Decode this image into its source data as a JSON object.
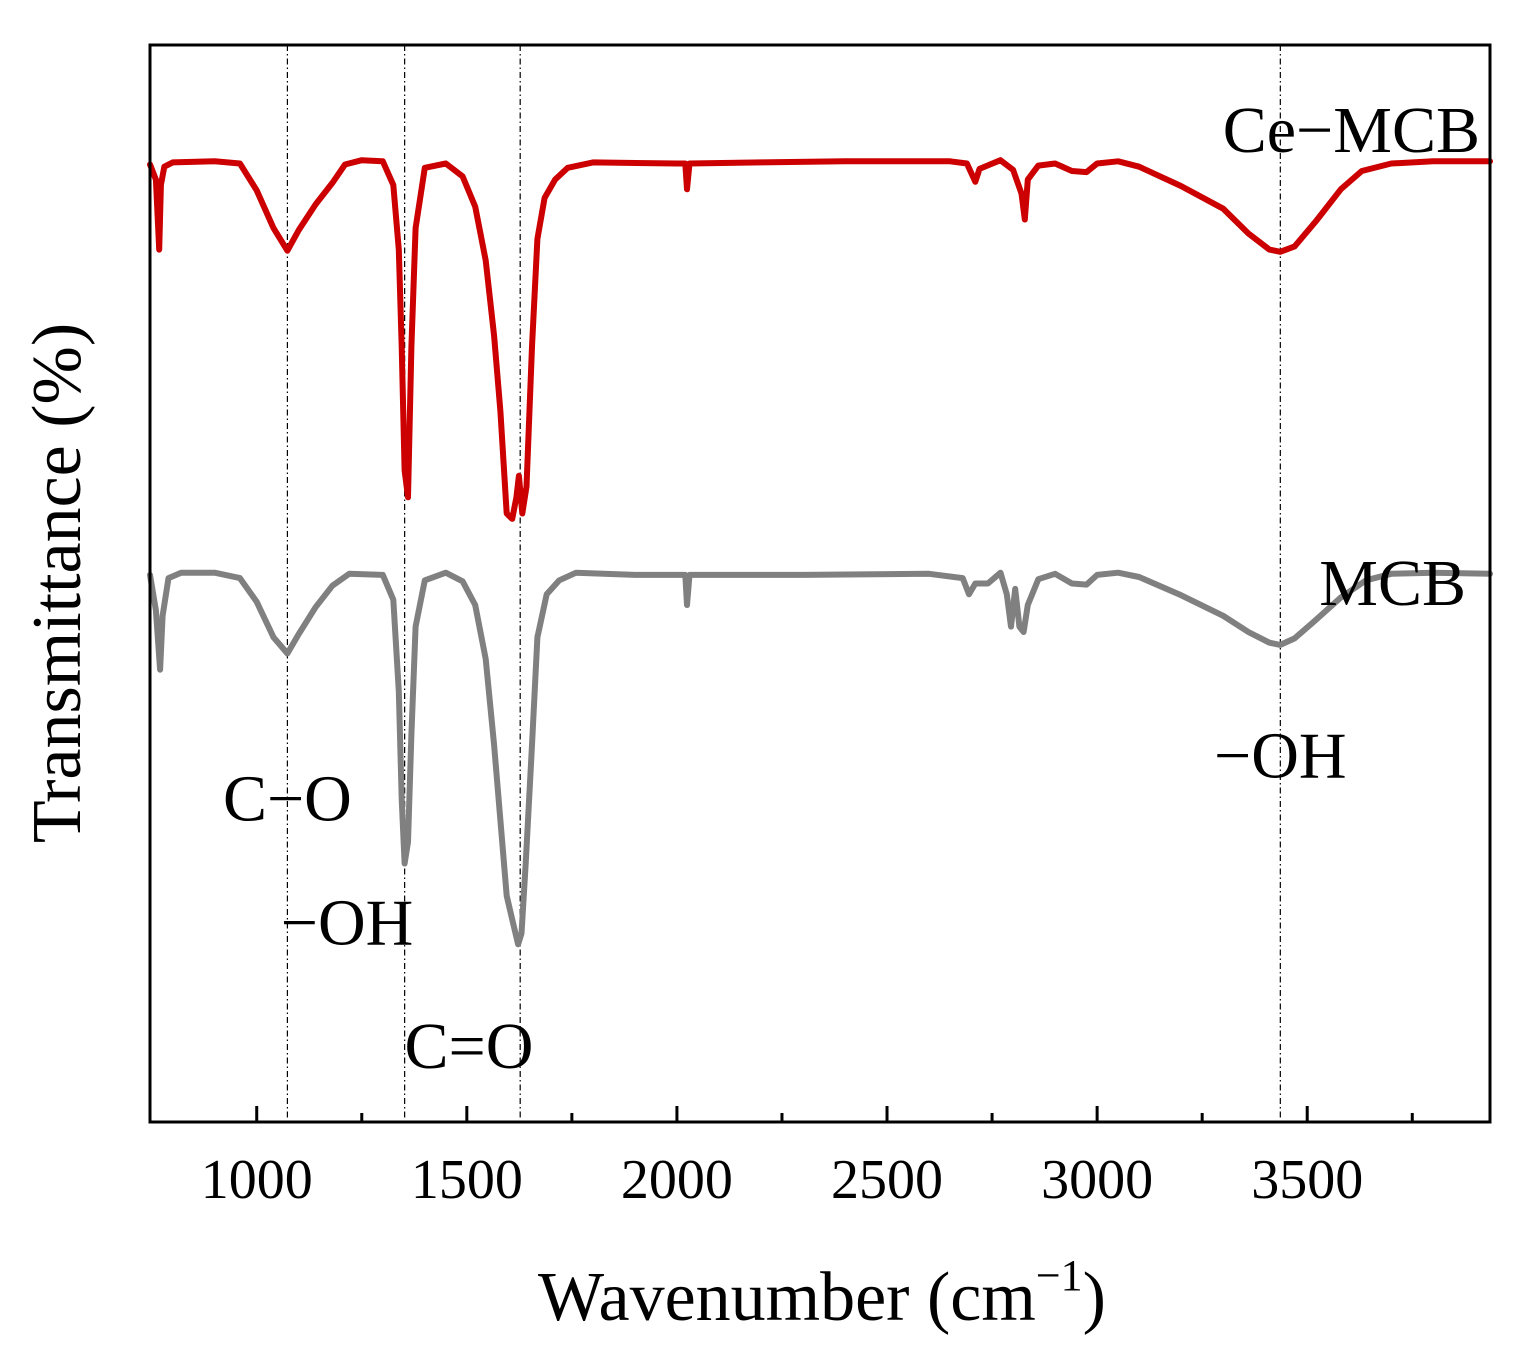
{
  "chart_data": {
    "type": "line",
    "title": "",
    "xlabel": "Wavenumber (cm",
    "xlabel_sup": "−1",
    "xlabel_close": ")",
    "ylabel": "Transmittance (%)",
    "xlim": [
      746,
      3935
    ],
    "ylim": [
      0,
      100
    ],
    "x_ticks": [
      1000,
      1500,
      2000,
      2500,
      3000,
      3500
    ],
    "x_tick_labels": [
      "1000",
      "1500",
      "2000",
      "2500",
      "3000",
      "3500"
    ],
    "x_minor_ticks": [
      1250,
      1750,
      2250,
      2750,
      3250,
      3750
    ],
    "grid": false,
    "colors": {
      "ce_mcb": "#cc0000",
      "mcb": "#808080",
      "axis": "#000000"
    },
    "reference_lines": [
      1073,
      1352,
      1627,
      3436
    ],
    "series": [
      {
        "name": "Ce−MCB",
        "color": "#cc0000",
        "label": "Ce−MCB",
        "points": [
          [
            746,
            88.9
          ],
          [
            760,
            87.5
          ],
          [
            768,
            81.0
          ],
          [
            772,
            87.0
          ],
          [
            780,
            88.7
          ],
          [
            800,
            89.1
          ],
          [
            900,
            89.2
          ],
          [
            960,
            89.0
          ],
          [
            1000,
            86.5
          ],
          [
            1040,
            83.0
          ],
          [
            1073,
            80.9
          ],
          [
            1100,
            82.8
          ],
          [
            1140,
            85.2
          ],
          [
            1180,
            87.2
          ],
          [
            1210,
            88.9
          ],
          [
            1250,
            89.3
          ],
          [
            1300,
            89.2
          ],
          [
            1325,
            87.0
          ],
          [
            1338,
            81.0
          ],
          [
            1345,
            72.0
          ],
          [
            1352,
            60.5
          ],
          [
            1360,
            58.0
          ],
          [
            1368,
            72.0
          ],
          [
            1378,
            83.0
          ],
          [
            1400,
            88.6
          ],
          [
            1450,
            89.0
          ],
          [
            1490,
            87.8
          ],
          [
            1520,
            85.0
          ],
          [
            1545,
            80.0
          ],
          [
            1565,
            73.0
          ],
          [
            1580,
            66.0
          ],
          [
            1595,
            56.5
          ],
          [
            1608,
            56.0
          ],
          [
            1618,
            58.0
          ],
          [
            1624,
            60.0
          ],
          [
            1632,
            56.5
          ],
          [
            1642,
            59.0
          ],
          [
            1655,
            72.0
          ],
          [
            1668,
            82.0
          ],
          [
            1685,
            85.8
          ],
          [
            1710,
            87.5
          ],
          [
            1740,
            88.6
          ],
          [
            1800,
            89.1
          ],
          [
            2000,
            89.0
          ],
          [
            2020,
            89.0
          ],
          [
            2024,
            86.6
          ],
          [
            2030,
            89.0
          ],
          [
            2200,
            89.1
          ],
          [
            2400,
            89.2
          ],
          [
            2650,
            89.2
          ],
          [
            2690,
            89.0
          ],
          [
            2710,
            87.3
          ],
          [
            2720,
            88.5
          ],
          [
            2745,
            88.9
          ],
          [
            2770,
            89.3
          ],
          [
            2800,
            88.4
          ],
          [
            2820,
            86.2
          ],
          [
            2828,
            83.8
          ],
          [
            2835,
            87.5
          ],
          [
            2860,
            88.8
          ],
          [
            2900,
            89.0
          ],
          [
            2940,
            88.3
          ],
          [
            2975,
            88.2
          ],
          [
            3000,
            89.0
          ],
          [
            3050,
            89.2
          ],
          [
            3100,
            88.7
          ],
          [
            3200,
            86.9
          ],
          [
            3300,
            84.8
          ],
          [
            3360,
            82.5
          ],
          [
            3410,
            81.0
          ],
          [
            3436,
            80.8
          ],
          [
            3470,
            81.3
          ],
          [
            3520,
            83.6
          ],
          [
            3580,
            86.6
          ],
          [
            3630,
            88.3
          ],
          [
            3700,
            89.0
          ],
          [
            3800,
            89.2
          ],
          [
            3935,
            89.2
          ]
        ]
      },
      {
        "name": "MCB",
        "color": "#808080",
        "label": "MCB",
        "points": [
          [
            746,
            50.8
          ],
          [
            760,
            47.5
          ],
          [
            770,
            42.0
          ],
          [
            776,
            47.0
          ],
          [
            790,
            50.5
          ],
          [
            820,
            51.0
          ],
          [
            900,
            51.0
          ],
          [
            960,
            50.5
          ],
          [
            1000,
            48.3
          ],
          [
            1040,
            45.0
          ],
          [
            1073,
            43.5
          ],
          [
            1100,
            45.3
          ],
          [
            1140,
            47.8
          ],
          [
            1180,
            49.8
          ],
          [
            1220,
            50.9
          ],
          [
            1300,
            50.8
          ],
          [
            1325,
            48.5
          ],
          [
            1338,
            40.0
          ],
          [
            1345,
            30.0
          ],
          [
            1352,
            24.0
          ],
          [
            1360,
            26.0
          ],
          [
            1368,
            36.0
          ],
          [
            1378,
            46.0
          ],
          [
            1400,
            50.3
          ],
          [
            1450,
            51.0
          ],
          [
            1490,
            50.2
          ],
          [
            1520,
            48.0
          ],
          [
            1545,
            43.0
          ],
          [
            1565,
            35.0
          ],
          [
            1580,
            28.0
          ],
          [
            1595,
            21.0
          ],
          [
            1610,
            18.5
          ],
          [
            1622,
            16.5
          ],
          [
            1630,
            17.5
          ],
          [
            1640,
            24.0
          ],
          [
            1655,
            35.0
          ],
          [
            1668,
            45.0
          ],
          [
            1690,
            49.0
          ],
          [
            1720,
            50.3
          ],
          [
            1760,
            51.0
          ],
          [
            1900,
            50.8
          ],
          [
            2020,
            50.8
          ],
          [
            2024,
            48.0
          ],
          [
            2030,
            50.8
          ],
          [
            2300,
            50.8
          ],
          [
            2600,
            50.9
          ],
          [
            2680,
            50.5
          ],
          [
            2695,
            49.0
          ],
          [
            2710,
            50.0
          ],
          [
            2740,
            50.0
          ],
          [
            2770,
            51.0
          ],
          [
            2785,
            49.0
          ],
          [
            2795,
            46.0
          ],
          [
            2805,
            49.5
          ],
          [
            2815,
            46.0
          ],
          [
            2825,
            45.5
          ],
          [
            2835,
            48.0
          ],
          [
            2860,
            50.4
          ],
          [
            2900,
            50.9
          ],
          [
            2940,
            50.0
          ],
          [
            2975,
            49.9
          ],
          [
            3000,
            50.8
          ],
          [
            3050,
            51.0
          ],
          [
            3100,
            50.6
          ],
          [
            3200,
            48.9
          ],
          [
            3300,
            47.0
          ],
          [
            3360,
            45.5
          ],
          [
            3410,
            44.5
          ],
          [
            3436,
            44.3
          ],
          [
            3470,
            44.9
          ],
          [
            3520,
            46.6
          ],
          [
            3580,
            48.7
          ],
          [
            3640,
            50.3
          ],
          [
            3700,
            50.9
          ],
          [
            3800,
            51.0
          ],
          [
            3935,
            50.9
          ]
        ]
      }
    ],
    "annotations": [
      {
        "text": "C−O",
        "x": 1073,
        "y": 28.0
      },
      {
        "text": "−OH",
        "x": 1215,
        "y": 16.5
      },
      {
        "text": "C=O",
        "x": 1505,
        "y": 5.0
      },
      {
        "text": "−OH",
        "x": 3436,
        "y": 32.0
      }
    ]
  }
}
